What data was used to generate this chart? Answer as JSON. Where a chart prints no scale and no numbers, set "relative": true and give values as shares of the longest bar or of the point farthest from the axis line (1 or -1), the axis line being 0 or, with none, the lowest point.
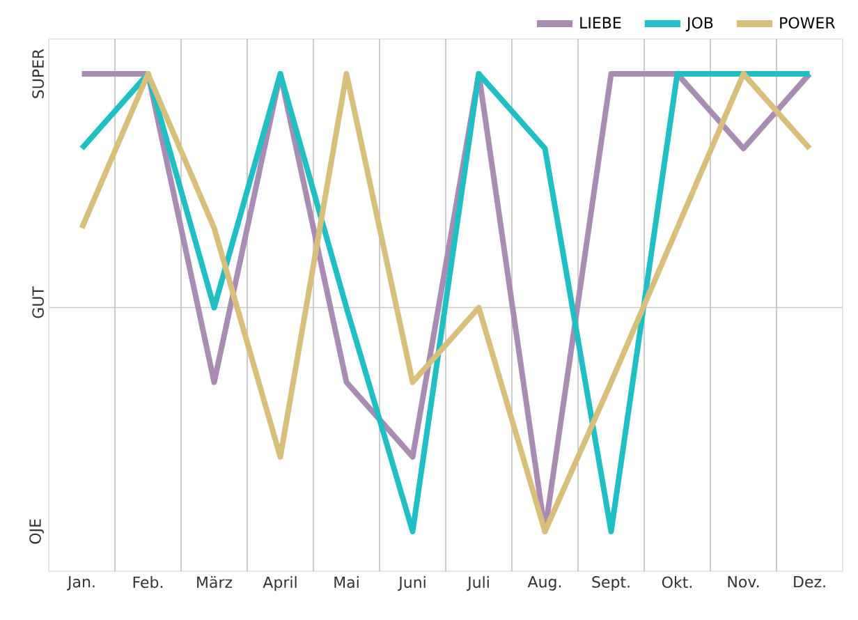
{
  "chart_data": {
    "type": "line",
    "relative": true,
    "categories": [
      "Jan.",
      "Feb.",
      "März",
      "April",
      "Mai",
      "Juni",
      "Juli",
      "Aug.",
      "Sept.",
      "Okt.",
      "Nov.",
      "Dez."
    ],
    "series": [
      {
        "name": "LIEBE",
        "color": "#a98cb3",
        "values": [
          1,
          1,
          0.38,
          1,
          0.38,
          0.23,
          1,
          0.08,
          1,
          1,
          0.85,
          1
        ]
      },
      {
        "name": "JOB",
        "color": "#1fbfc4",
        "values": [
          0.85,
          1,
          0.53,
          1,
          0.53,
          0.08,
          1,
          0.85,
          0.08,
          1,
          1,
          1
        ]
      },
      {
        "name": "POWER",
        "color": "#d8c07c",
        "values": [
          0.69,
          1,
          0.69,
          0.23,
          1,
          0.38,
          0.53,
          0.08,
          0.38,
          0.69,
          1,
          0.85
        ]
      }
    ],
    "annotations": [
      "SUPER",
      "GUT",
      "OJE"
    ],
    "ref_lines": [
      {
        "axis": "y",
        "value": 0.53,
        "color": "#c8c8c8"
      }
    ],
    "grid": "x",
    "legend": "top right",
    "marker": "none",
    "line_style": "solid"
  }
}
